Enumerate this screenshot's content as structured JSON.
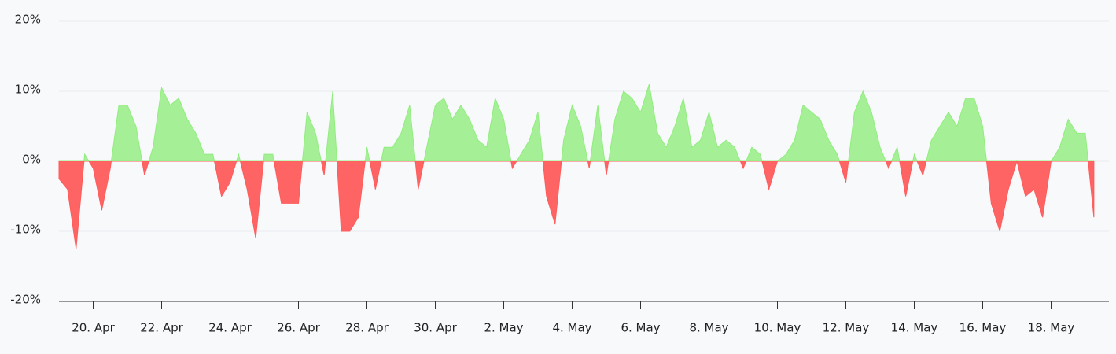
{
  "chart_data": {
    "type": "area",
    "color": "#90ed7d",
    "negative_color": "#ff5c5c",
    "ylim": [
      -20,
      20
    ],
    "yticks": [
      {
        "value": -20,
        "label": "-20%"
      },
      {
        "value": -10,
        "label": "-10%"
      },
      {
        "value": 0,
        "label": "0%"
      },
      {
        "value": 10,
        "label": "10%"
      },
      {
        "value": 20,
        "label": "20%"
      }
    ],
    "grid": true,
    "xlim": [
      "04-19 00:00",
      "05-19 16:00"
    ],
    "xticks": [
      {
        "value": "04-20 00:00",
        "label": "20. Apr"
      },
      {
        "value": "04-22 00:00",
        "label": "22. Apr"
      },
      {
        "value": "04-24 00:00",
        "label": "24. Apr"
      },
      {
        "value": "04-26 00:00",
        "label": "26. Apr"
      },
      {
        "value": "04-28 00:00",
        "label": "28. Apr"
      },
      {
        "value": "04-30 00:00",
        "label": "30. Apr"
      },
      {
        "value": "05-02 00:00",
        "label": "2. May"
      },
      {
        "value": "05-04 00:00",
        "label": "4. May"
      },
      {
        "value": "05-06 00:00",
        "label": "6. May"
      },
      {
        "value": "05-08 00:00",
        "label": "8. May"
      },
      {
        "value": "05-10 00:00",
        "label": "10. May"
      },
      {
        "value": "05-12 00:00",
        "label": "12. May"
      },
      {
        "value": "05-14 00:00",
        "label": "14. May"
      },
      {
        "value": "05-16 00:00",
        "label": "16. May"
      },
      {
        "value": "05-18 00:00",
        "label": "18. May"
      }
    ],
    "x": [
      "04-19 00:00",
      "04-19 06:00",
      "04-19 12:00",
      "04-19 18:00",
      "04-20 00:00",
      "04-20 06:00",
      "04-20 12:00",
      "04-20 18:00",
      "04-21 00:00",
      "04-21 06:00",
      "04-21 12:00",
      "04-21 18:00",
      "04-22 00:00",
      "04-22 06:00",
      "04-22 12:00",
      "04-22 18:00",
      "04-23 00:00",
      "04-23 06:00",
      "04-23 12:00",
      "04-23 18:00",
      "04-24 00:00",
      "04-24 06:00",
      "04-24 12:00",
      "04-24 18:00",
      "04-25 00:00",
      "04-25 06:00",
      "04-25 12:00",
      "04-25 18:00",
      "04-26 00:00",
      "04-26 06:00",
      "04-26 12:00",
      "04-26 18:00",
      "04-27 00:00",
      "04-27 06:00",
      "04-27 12:00",
      "04-27 18:00",
      "04-28 00:00",
      "04-28 06:00",
      "04-28 12:00",
      "04-28 18:00",
      "04-29 00:00",
      "04-29 06:00",
      "04-29 12:00",
      "04-29 18:00",
      "04-30 00:00",
      "04-30 06:00",
      "04-30 12:00",
      "04-30 18:00",
      "05-01 00:00",
      "05-01 06:00",
      "05-01 12:00",
      "05-01 18:00",
      "05-02 00:00",
      "05-02 06:00",
      "05-02 12:00",
      "05-02 18:00",
      "05-03 00:00",
      "05-03 06:00",
      "05-03 12:00",
      "05-03 18:00",
      "05-04 00:00",
      "05-04 06:00",
      "05-04 12:00",
      "05-04 18:00",
      "05-05 00:00",
      "05-05 06:00",
      "05-05 12:00",
      "05-05 18:00",
      "05-06 00:00",
      "05-06 06:00",
      "05-06 12:00",
      "05-06 18:00",
      "05-07 00:00",
      "05-07 06:00",
      "05-07 12:00",
      "05-07 18:00",
      "05-08 00:00",
      "05-08 06:00",
      "05-08 12:00",
      "05-08 18:00",
      "05-09 00:00",
      "05-09 06:00",
      "05-09 12:00",
      "05-09 18:00",
      "05-10 00:00",
      "05-10 06:00",
      "05-10 12:00",
      "05-10 18:00",
      "05-11 00:00",
      "05-11 06:00",
      "05-11 12:00",
      "05-11 18:00",
      "05-12 00:00",
      "05-12 06:00",
      "05-12 12:00",
      "05-12 18:00",
      "05-13 00:00",
      "05-13 06:00",
      "05-13 12:00",
      "05-13 18:00",
      "05-14 00:00",
      "05-14 06:00",
      "05-14 12:00",
      "05-14 18:00",
      "05-15 00:00",
      "05-15 06:00",
      "05-15 12:00",
      "05-15 18:00",
      "05-16 00:00",
      "05-16 06:00",
      "05-16 12:00",
      "05-16 18:00",
      "05-17 00:00",
      "05-17 06:00",
      "05-17 12:00",
      "05-17 18:00",
      "05-18 00:00",
      "05-18 06:00",
      "05-18 12:00",
      "05-18 18:00",
      "05-19 00:00",
      "05-19 06:00"
    ],
    "values": [
      -2.5,
      -4,
      -12.5,
      1,
      -1,
      -7,
      -1,
      8,
      8,
      5,
      -2,
      2,
      10.5,
      8,
      9,
      6,
      4,
      1,
      1,
      -5,
      -3,
      1,
      -4,
      -11,
      1,
      1,
      -6,
      -6,
      -6,
      7,
      4,
      -2,
      10,
      -10,
      -10,
      -8,
      2,
      -4,
      2,
      2,
      4,
      8,
      -4,
      2,
      8,
      9,
      6,
      8,
      6,
      3,
      2,
      9,
      6,
      -1,
      1,
      3,
      7,
      -5,
      -9,
      3,
      8,
      5,
      -1,
      8,
      -2,
      6,
      10,
      9,
      7,
      11,
      4,
      2,
      5,
      9,
      2,
      3,
      7,
      2,
      3,
      2,
      -1,
      2,
      1,
      -4,
      0,
      1,
      3,
      8,
      7,
      6,
      3,
      1,
      -3,
      7,
      10,
      7,
      2,
      -1,
      2,
      -5,
      1,
      -2,
      3,
      5,
      7,
      5,
      9,
      9,
      5,
      -6,
      -10,
      -4,
      0,
      -5,
      -4,
      -8,
      0,
      2,
      6,
      4,
      4,
      -8
    ]
  }
}
